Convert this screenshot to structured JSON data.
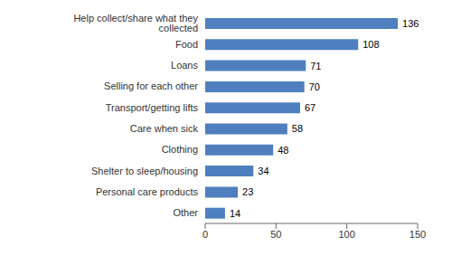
{
  "chart_data": {
    "type": "bar",
    "orientation": "horizontal",
    "categories": [
      "Other",
      "Personal care products",
      "Shelter to sleep/housing",
      "Clothing",
      "Care when sick",
      "Transport/getting lifts",
      "Selling for each other",
      "Loans",
      "Food",
      "Help collect/share what they collected"
    ],
    "values": [
      14,
      23,
      34,
      48,
      58,
      67,
      70,
      71,
      108,
      136
    ],
    "color": "#4f7fbf",
    "xlim": [
      0,
      150
    ],
    "xticks": [
      0,
      50,
      100,
      150
    ],
    "data_labels": true,
    "grid": false
  }
}
